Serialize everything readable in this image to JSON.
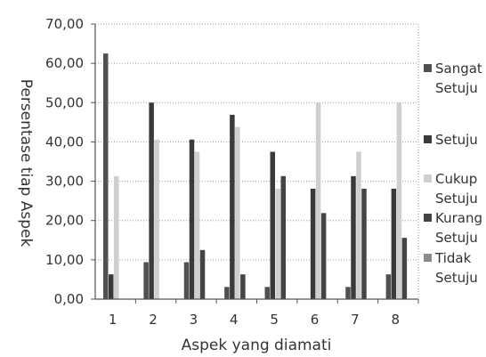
{
  "chart_data": {
    "type": "bar",
    "title": "",
    "xlabel": "Aspek yang diamati",
    "ylabel": "Persentase tiap Aspek",
    "ylim": [
      0,
      70
    ],
    "yticks": [
      "0,00",
      "10,00",
      "20,00",
      "30,00",
      "40,00",
      "50,00",
      "60,00",
      "70,00"
    ],
    "categories": [
      "1",
      "2",
      "3",
      "4",
      "5",
      "6",
      "7",
      "8"
    ],
    "series": [
      {
        "name_lines": [
          "Sangat",
          "Setuju"
        ],
        "color": "#505050",
        "values": [
          62.5,
          9.4,
          9.4,
          3.1,
          3.1,
          0,
          3.1,
          6.3
        ]
      },
      {
        "name_lines": [
          "Setuju"
        ],
        "color": "#3a3a3a",
        "values": [
          6.3,
          50.0,
          40.6,
          46.9,
          37.5,
          28.1,
          31.3,
          28.1
        ]
      },
      {
        "name_lines": [
          "Cukup",
          "Setuju"
        ],
        "color": "#cfcfcf",
        "values": [
          31.3,
          40.6,
          37.5,
          43.8,
          28.1,
          50.0,
          37.5,
          50.0
        ]
      },
      {
        "name_lines": [
          "Kurang",
          "Setuju"
        ],
        "color": "#444444",
        "values": [
          0,
          0,
          12.5,
          6.3,
          31.3,
          21.9,
          28.1,
          15.6
        ]
      },
      {
        "name_lines": [
          "Tidak",
          "Setuju"
        ],
        "color": "#8a8a8a",
        "values": [
          0,
          0,
          0,
          0,
          0,
          0,
          0,
          0
        ]
      }
    ],
    "gridlines": true,
    "legend_position": "right"
  }
}
